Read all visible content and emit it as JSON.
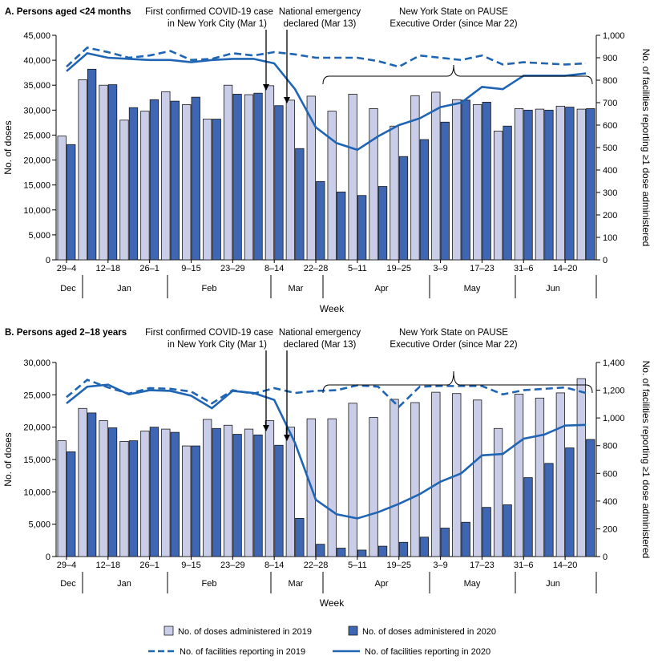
{
  "colors": {
    "bar_2019": "#c9cde8",
    "bar_2020": "#3e66b2",
    "line": "#1f65b4"
  },
  "legend": {
    "doses_2019": "No. of doses administered in 2019",
    "doses_2020": "No. of doses administered in 2020",
    "facilities_2019": "No. of facilities reporting in 2019",
    "facilities_2020": "No. of facilities reporting in 2020"
  },
  "chart_data": [
    {
      "type": "bar",
      "panel": "A",
      "title": "A. Persons aged <24 months",
      "xlabel": "Week",
      "ylabel": "No. of doses",
      "y2label": "No. of facilities reporting ≥1 dose administered",
      "ylim": [
        0,
        45000
      ],
      "yticks": [
        0,
        5000,
        10000,
        15000,
        20000,
        25000,
        30000,
        35000,
        40000,
        45000
      ],
      "ytick_labels": [
        "0",
        "5,000",
        "10,000",
        "15,000",
        "20,000",
        "25,000",
        "30,000",
        "35,000",
        "40,000",
        "45,000"
      ],
      "y2lim": [
        0,
        1000
      ],
      "y2ticks": [
        0,
        100,
        200,
        300,
        400,
        500,
        600,
        700,
        800,
        900,
        1000
      ],
      "y2tick_labels": [
        "0",
        "100",
        "200",
        "300",
        "400",
        "500",
        "600",
        "700",
        "800",
        "900",
        "1,000"
      ],
      "week_labels": [
        "29–4",
        "",
        "12–18",
        "",
        "26–1",
        "",
        "9–15",
        "",
        "23–29",
        "",
        "8–14",
        "",
        "22–28",
        "",
        "5–11",
        "",
        "19–25",
        "",
        "3–9",
        "",
        "17–23",
        "",
        "31–6",
        "",
        "14–20",
        ""
      ],
      "months": [
        "Dec",
        "Jan",
        "Feb",
        "Mar",
        "Apr",
        "May",
        "Jun"
      ],
      "series": [
        {
          "name": "No. of doses administered in 2019",
          "values": [
            24800,
            36100,
            35000,
            28000,
            29800,
            33700,
            31100,
            28200,
            35000,
            33100,
            34900,
            32000,
            32800,
            29800,
            33200,
            30300,
            26800,
            32900,
            33600,
            32100,
            31100,
            25800,
            30300,
            30200,
            30800,
            30200
          ]
        },
        {
          "name": "No. of doses administered in 2020",
          "values": [
            23100,
            38200,
            35100,
            30500,
            32100,
            31800,
            32600,
            28200,
            33200,
            33400,
            30900,
            22300,
            15700,
            13600,
            12900,
            14700,
            20700,
            24100,
            27600,
            32000,
            31600,
            26800,
            30000,
            30000,
            30600,
            30300
          ]
        },
        {
          "name": "No. of facilities reporting in 2019",
          "axis": "y2",
          "values": [
            860,
            945,
            925,
            900,
            910,
            930,
            890,
            895,
            920,
            910,
            925,
            915,
            900,
            900,
            900,
            885,
            860,
            910,
            900,
            890,
            910,
            870,
            880,
            875,
            870,
            875
          ]
        },
        {
          "name": "No. of facilities reporting in 2020",
          "axis": "y2",
          "values": [
            840,
            920,
            900,
            895,
            890,
            890,
            880,
            890,
            895,
            895,
            875,
            760,
            590,
            520,
            490,
            550,
            600,
            630,
            680,
            700,
            770,
            760,
            820,
            820,
            820,
            830
          ]
        }
      ],
      "annotations": [
        {
          "lines": [
            "First confirmed COVID-19 case",
            "in New York City (Mar 1)"
          ]
        },
        {
          "lines": [
            "National emergency",
            "declared (Mar 13)"
          ]
        },
        {
          "lines": [
            "New York State on PAUSE",
            "Executive Order (since Mar 22)"
          ]
        }
      ]
    },
    {
      "type": "bar",
      "panel": "B",
      "title": "B. Persons aged 2–18 years",
      "xlabel": "Week",
      "ylabel": "No. of doses",
      "y2label": "No. of facilities reporting ≥1 dose administered",
      "ylim": [
        0,
        30000
      ],
      "yticks": [
        0,
        5000,
        10000,
        15000,
        20000,
        25000,
        30000
      ],
      "ytick_labels": [
        "0",
        "5,000",
        "10,000",
        "15,000",
        "20,000",
        "25,000",
        "30,000"
      ],
      "y2lim": [
        0,
        1400
      ],
      "y2ticks": [
        0,
        200,
        400,
        600,
        800,
        1000,
        1200,
        1400
      ],
      "y2tick_labels": [
        "0",
        "200",
        "400",
        "600",
        "800",
        "1,000",
        "1,200",
        "1,400"
      ],
      "week_labels": [
        "29–4",
        "",
        "12–18",
        "",
        "26–1",
        "",
        "9–15",
        "",
        "23–29",
        "",
        "8–14",
        "",
        "22–28",
        "",
        "5–11",
        "",
        "19–25",
        "",
        "3–9",
        "",
        "17–23",
        "",
        "31–6",
        "",
        "14–20",
        ""
      ],
      "months": [
        "Dec",
        "Jan",
        "Feb",
        "Mar",
        "Apr",
        "May",
        "Jun"
      ],
      "series": [
        {
          "name": "No. of doses administered in 2019",
          "values": [
            17900,
            22900,
            21000,
            17800,
            19400,
            19700,
            17100,
            21200,
            20300,
            19700,
            21000,
            20000,
            21300,
            21300,
            23700,
            21500,
            24300,
            23800,
            25400,
            25200,
            24200,
            19800,
            25100,
            24500,
            25300,
            27500
          ]
        },
        {
          "name": "No. of doses administered in 2020",
          "values": [
            16200,
            22200,
            19900,
            17900,
            20000,
            19200,
            17100,
            19800,
            18900,
            18800,
            17200,
            5900,
            1900,
            1300,
            1000,
            1600,
            2200,
            3000,
            4400,
            5300,
            7600,
            8000,
            12200,
            14400,
            16800,
            18100
          ]
        },
        {
          "name": "No. of facilities reporting in 2019",
          "axis": "y2",
          "values": [
            1150,
            1275,
            1220,
            1175,
            1215,
            1210,
            1190,
            1105,
            1200,
            1175,
            1215,
            1180,
            1195,
            1200,
            1235,
            1225,
            1080,
            1225,
            1230,
            1230,
            1230,
            1170,
            1200,
            1210,
            1220,
            1180
          ]
        },
        {
          "name": "No. of facilities reporting in 2020",
          "axis": "y2",
          "values": [
            1105,
            1225,
            1240,
            1170,
            1200,
            1195,
            1160,
            1070,
            1195,
            1180,
            1130,
            820,
            410,
            305,
            275,
            320,
            380,
            450,
            540,
            600,
            730,
            740,
            850,
            880,
            945,
            950
          ]
        }
      ],
      "annotations": [
        {
          "lines": [
            "First confirmed COVID-19 case",
            "in New York City (Mar 1)"
          ]
        },
        {
          "lines": [
            "National emergency",
            "declared (Mar 13)"
          ]
        },
        {
          "lines": [
            "New York State on PAUSE",
            "Executive Order (since Mar 22)"
          ]
        }
      ]
    }
  ]
}
